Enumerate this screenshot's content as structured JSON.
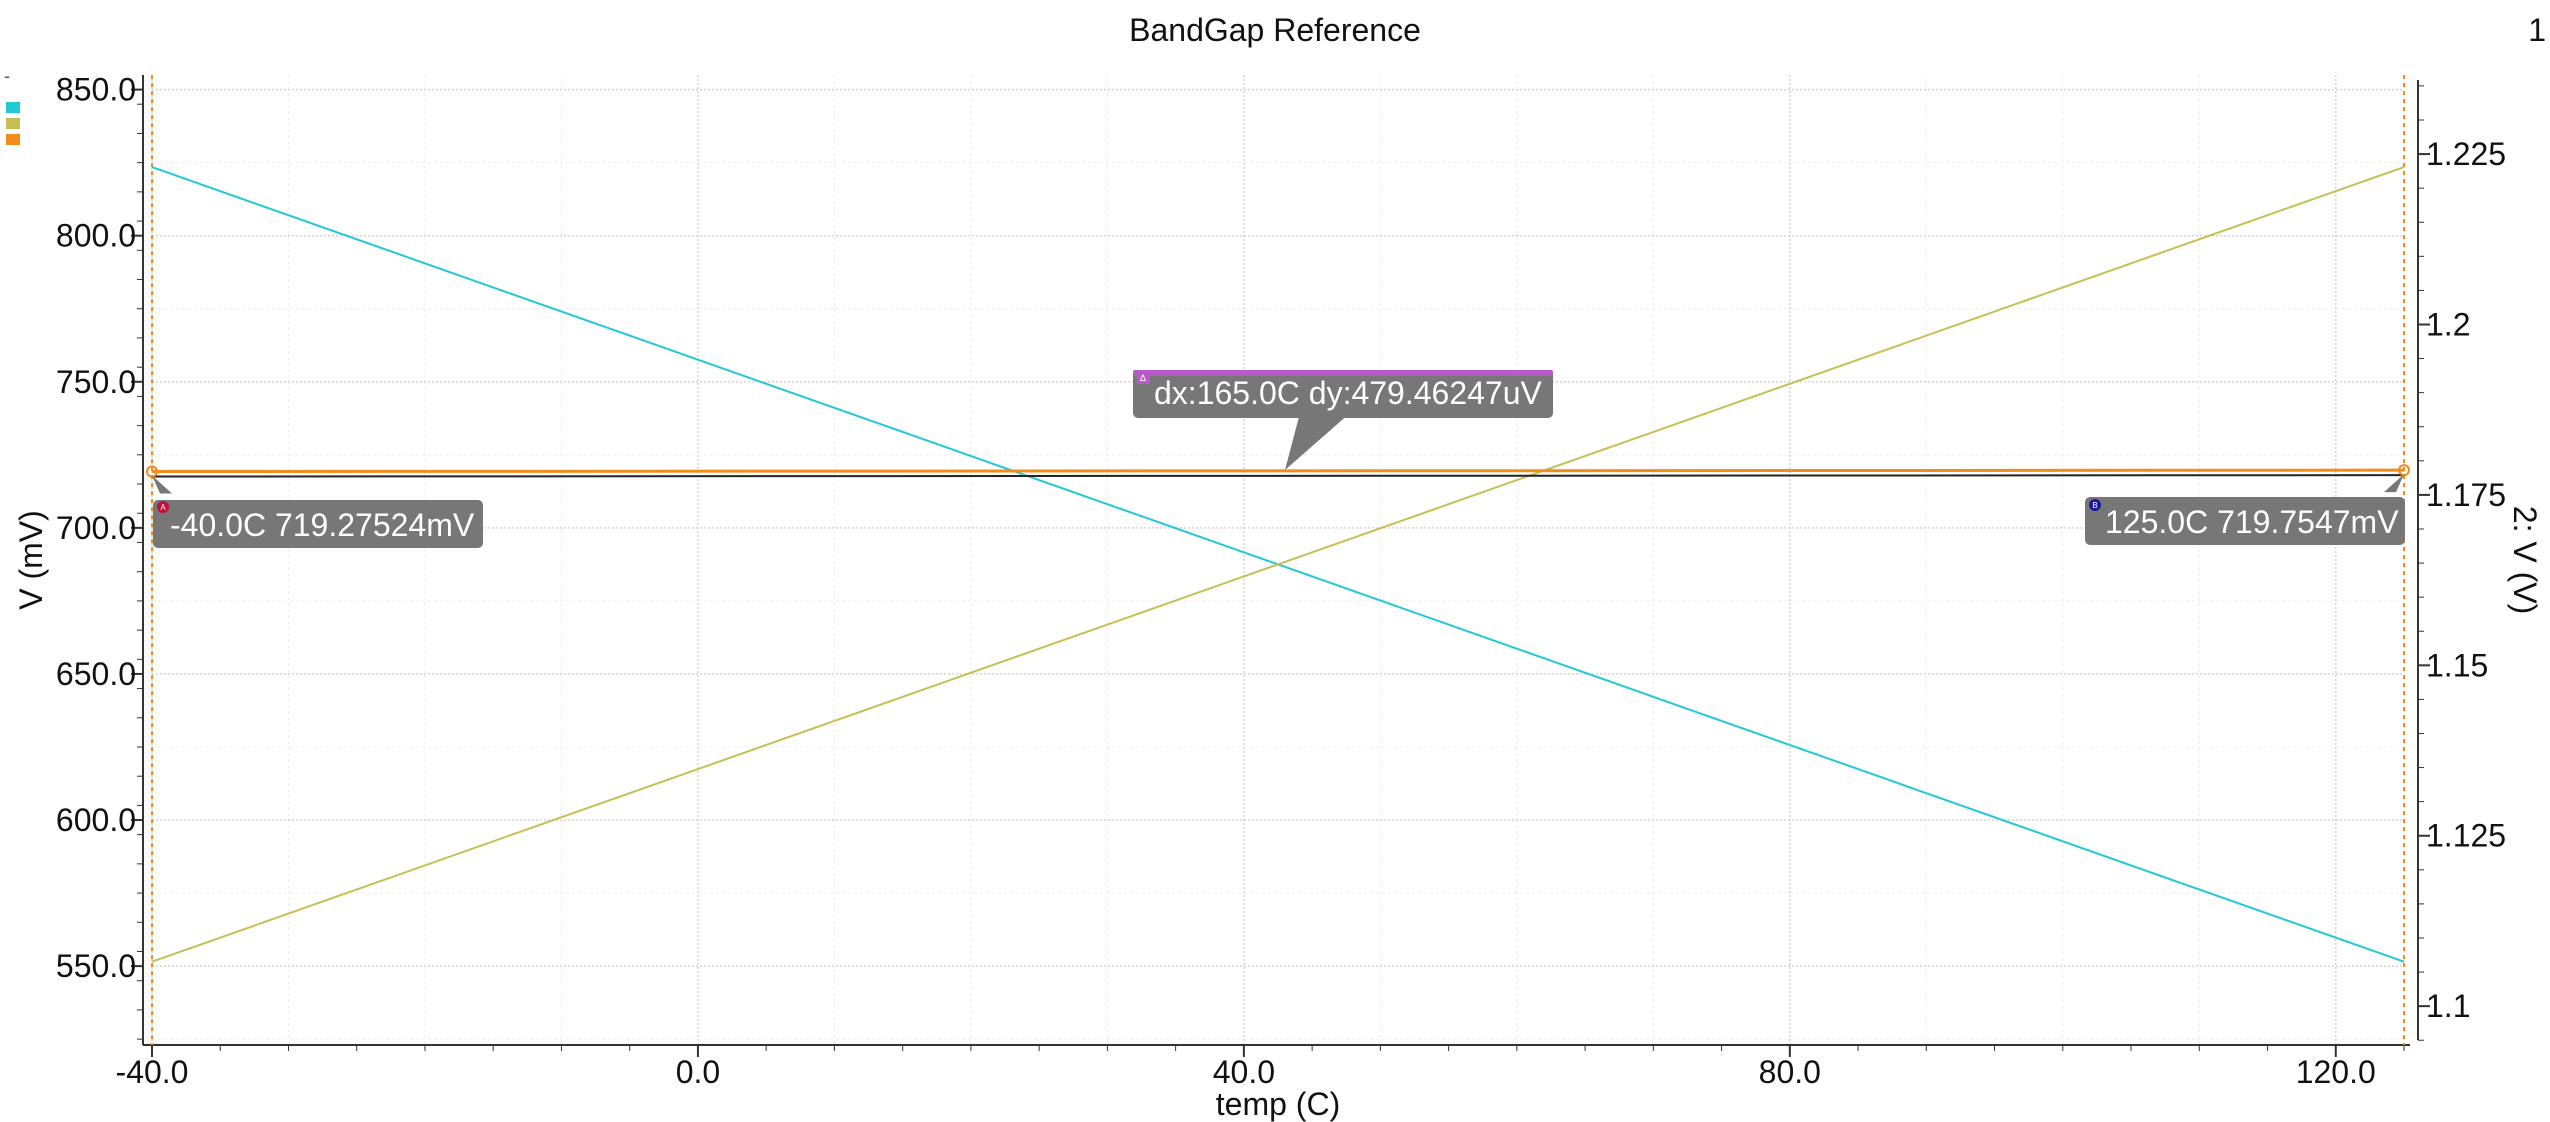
{
  "window": {
    "title": "BandGap Reference",
    "page_number": "1",
    "top_left_mark": "-"
  },
  "chart_data": {
    "type": "line",
    "title": "BandGap Reference",
    "xlabel": "temp (C)",
    "ylabel_left": "V (mV)",
    "ylabel_right": "2: V (V)",
    "xlim": [
      -40,
      125
    ],
    "ylim_left": [
      523,
      855
    ],
    "ylim_right": [
      1.0943,
      1.2366
    ],
    "x_ticks": [
      "-40.0",
      "0.0",
      "40.0",
      "80.0",
      "120.0"
    ],
    "x_tick_values": [
      -40,
      0,
      40,
      80,
      120
    ],
    "y_left_ticks": [
      "550.0",
      "600.0",
      "650.0",
      "700.0",
      "750.0",
      "800.0",
      "850.0"
    ],
    "y_left_tick_values": [
      550,
      600,
      650,
      700,
      750,
      800,
      850
    ],
    "y_right_ticks": [
      "1.1",
      "1.125",
      "1.15",
      "1.175",
      "1.2",
      "1.225"
    ],
    "y_right_tick_values": [
      1.1,
      1.125,
      1.15,
      1.175,
      1.2,
      1.225
    ],
    "grid": true,
    "legend": "top-left (color swatches only)",
    "series": [
      {
        "color": "#22c8d4",
        "axis": "left",
        "x": [
          -40,
          125
        ],
        "y": [
          823.5,
          551.5
        ]
      },
      {
        "color": "#c6bf55",
        "axis": "left",
        "x": [
          -40,
          125
        ],
        "y": [
          551.5,
          823.5
        ]
      },
      {
        "color": "#f28c1a",
        "axis": "left",
        "x": [
          -40,
          125
        ],
        "y": [
          719.27524,
          719.7547
        ]
      }
    ],
    "markers": [
      {
        "id": "A",
        "label": "-40.0C 719.27524mV",
        "x": -40,
        "y": 719.27524,
        "badge_color": "#c0103a"
      },
      {
        "id": "B",
        "label": "125.0C 719.7547mV",
        "x": 125,
        "y": 719.7547,
        "badge_color": "#1a1a9a"
      }
    ],
    "delta_label": {
      "id": "Δ",
      "text": "dx:165.0C dy:479.46247uV",
      "badge_color": "#b85ac8"
    },
    "vertical_cursors_color": "#f28c1a",
    "annotation_bg": "#777777"
  }
}
